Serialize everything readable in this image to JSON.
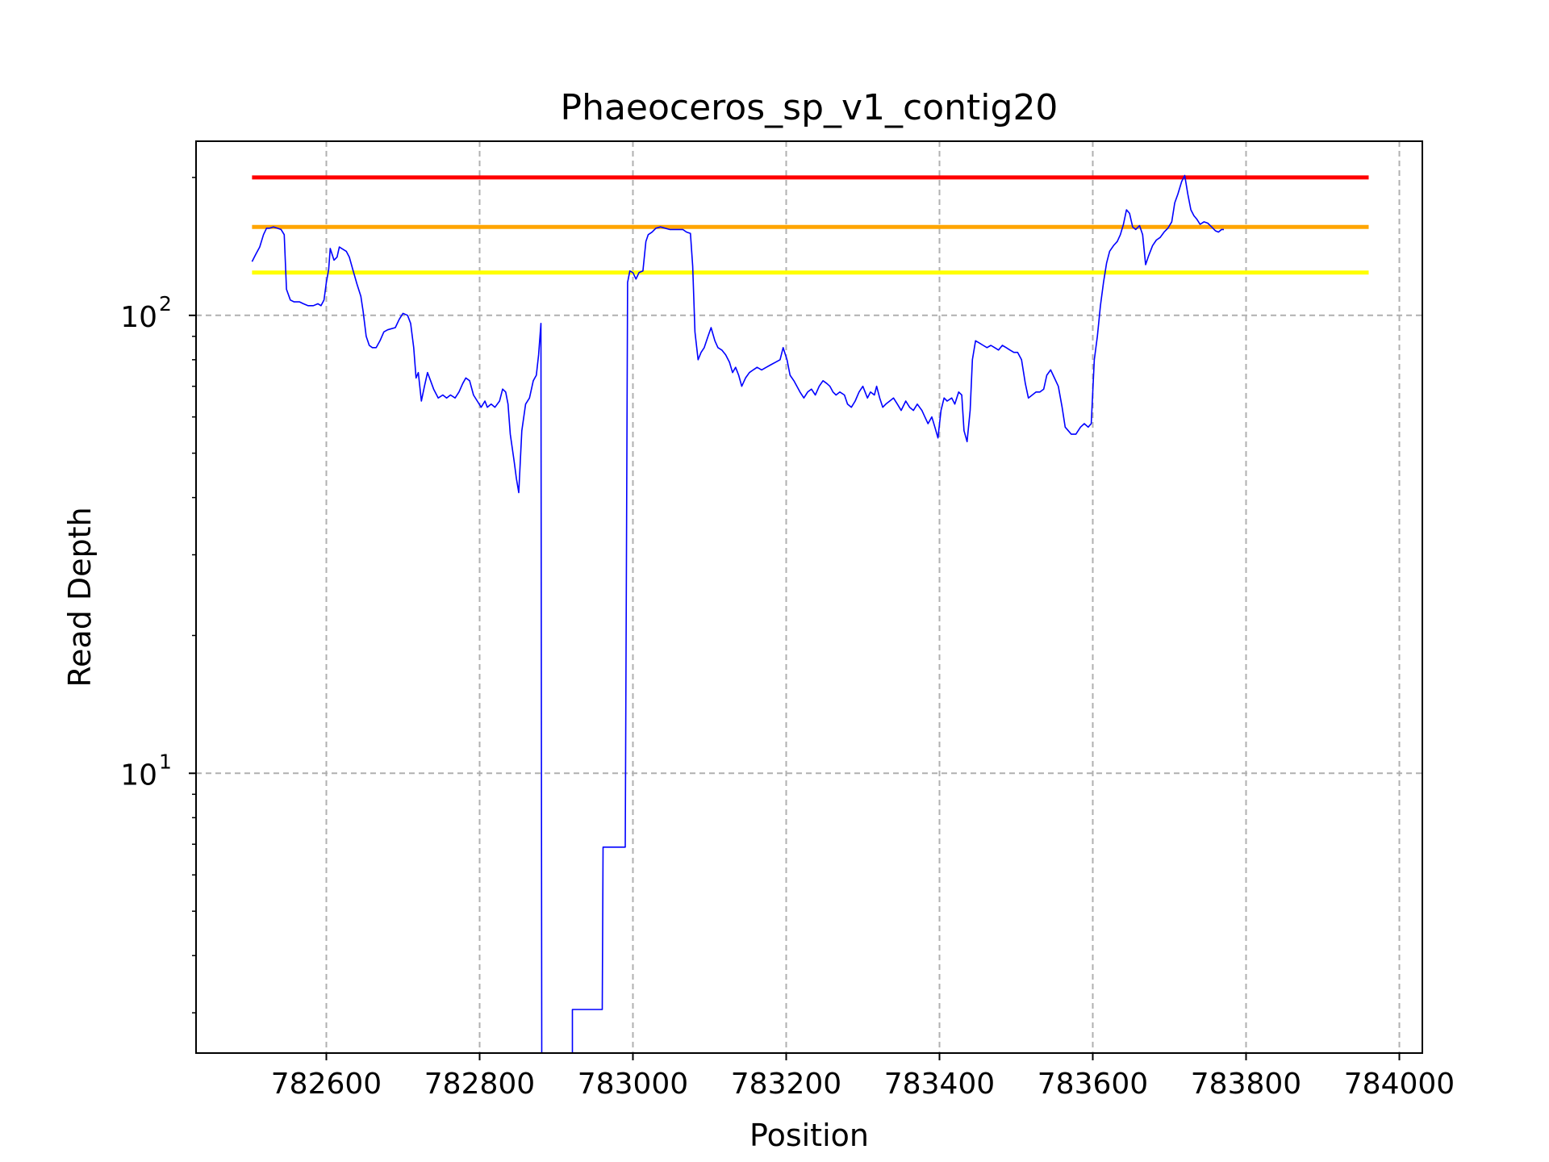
{
  "chart_data": {
    "type": "line",
    "title": "Phaeoceros_sp_v1_contig20",
    "xlabel": "Position",
    "ylabel": "Read Depth",
    "yscale": "log",
    "xlim": [
      782430,
      784030
    ],
    "ylim": [
      2.45,
      240
    ],
    "grid": true,
    "x_ticks": [
      782600,
      782800,
      783000,
      783200,
      783400,
      783600,
      783800,
      784000
    ],
    "x_tick_labels": [
      "782600",
      "782800",
      "783000",
      "783200",
      "783400",
      "783600",
      "783800",
      "784000"
    ],
    "y_ticks": [
      {
        "value": 10,
        "base": "10",
        "exp": "1"
      },
      {
        "value": 100,
        "base": "10",
        "exp": "2"
      }
    ],
    "reference_lines": [
      {
        "name": "red",
        "value": 200,
        "x_range": [
          782503,
          783960
        ],
        "color": "#ff0000"
      },
      {
        "name": "orange",
        "value": 156,
        "x_range": [
          782503,
          783960
        ],
        "color": "#ffa500"
      },
      {
        "name": "yellow",
        "value": 124,
        "x_range": [
          782503,
          783960
        ],
        "color": "#ffff00"
      }
    ],
    "series": [
      {
        "name": "read depth",
        "color": "#0000ff",
        "points": [
          [
            782503,
            131
          ],
          [
            782508,
            136
          ],
          [
            782513,
            141
          ],
          [
            782518,
            150
          ],
          [
            782522,
            155
          ],
          [
            782526,
            155
          ],
          [
            782531,
            156
          ],
          [
            782536,
            155
          ],
          [
            782541,
            154
          ],
          [
            782545,
            150
          ],
          [
            782548,
            114
          ],
          [
            782553,
            108
          ],
          [
            782558,
            107
          ],
          [
            782565,
            107
          ],
          [
            782570,
            106
          ],
          [
            782576,
            105
          ],
          [
            782583,
            105
          ],
          [
            782589,
            106
          ],
          [
            782593,
            105
          ],
          [
            782597,
            108
          ],
          [
            782600,
            118
          ],
          [
            782603,
            126
          ],
          [
            782605,
            140
          ],
          [
            782610,
            132
          ],
          [
            782614,
            134
          ],
          [
            782617,
            141
          ],
          [
            782620,
            140
          ],
          [
            782626,
            138
          ],
          [
            782630,
            134
          ],
          [
            782635,
            125
          ],
          [
            782640,
            117
          ],
          [
            782645,
            110
          ],
          [
            782648,
            102
          ],
          [
            782652,
            90
          ],
          [
            782656,
            86
          ],
          [
            782660,
            85
          ],
          [
            782665,
            85
          ],
          [
            782670,
            88
          ],
          [
            782675,
            92
          ],
          [
            782680,
            93
          ],
          [
            782690,
            94
          ],
          [
            782695,
            98
          ],
          [
            782700,
            101
          ],
          [
            782706,
            100
          ],
          [
            782710,
            96
          ],
          [
            782714,
            85
          ],
          [
            782717,
            73
          ],
          [
            782720,
            75
          ],
          [
            782724,
            65
          ],
          [
            782728,
            70
          ],
          [
            782732,
            75
          ],
          [
            782736,
            72
          ],
          [
            782740,
            69
          ],
          [
            782746,
            66
          ],
          [
            782752,
            67
          ],
          [
            782757,
            66
          ],
          [
            782762,
            67
          ],
          [
            782768,
            66
          ],
          [
            782773,
            68
          ],
          [
            782778,
            71
          ],
          [
            782782,
            73
          ],
          [
            782787,
            72
          ],
          [
            782792,
            67
          ],
          [
            782797,
            65
          ],
          [
            782802,
            63
          ],
          [
            782807,
            65
          ],
          [
            782810,
            63
          ],
          [
            782815,
            64
          ],
          [
            782820,
            63
          ],
          [
            782826,
            65
          ],
          [
            782830,
            69
          ],
          [
            782834,
            68
          ],
          [
            782837,
            64
          ],
          [
            782840,
            55
          ],
          [
            782845,
            48
          ],
          [
            782848,
            44
          ],
          [
            782851,
            41
          ],
          [
            782855,
            56
          ],
          [
            782860,
            64
          ],
          [
            782865,
            66
          ],
          [
            782870,
            72
          ],
          [
            782874,
            74
          ],
          [
            782877,
            82
          ],
          [
            782880,
            96
          ],
          [
            782881,
            2.45
          ],
          [
            782921,
            2.45
          ],
          [
            782921,
            3.05
          ],
          [
            782960,
            3.05
          ],
          [
            782961,
            6.9
          ],
          [
            782990,
            6.9
          ],
          [
            782993,
            118
          ],
          [
            782996,
            125
          ],
          [
            783000,
            124
          ],
          [
            783004,
            120
          ],
          [
            783008,
            124
          ],
          [
            783013,
            125
          ],
          [
            783017,
            145
          ],
          [
            783020,
            150
          ],
          [
            783025,
            152
          ],
          [
            783030,
            155
          ],
          [
            783036,
            156
          ],
          [
            783042,
            155
          ],
          [
            783048,
            154
          ],
          [
            783054,
            154
          ],
          [
            783060,
            154
          ],
          [
            783065,
            154
          ],
          [
            783070,
            152
          ],
          [
            783075,
            151
          ],
          [
            783078,
            128
          ],
          [
            783081,
            92
          ],
          [
            783085,
            80
          ],
          [
            783089,
            83
          ],
          [
            783093,
            85
          ],
          [
            783098,
            90
          ],
          [
            783102,
            94
          ],
          [
            783107,
            88
          ],
          [
            783111,
            85
          ],
          [
            783116,
            84
          ],
          [
            783121,
            82
          ],
          [
            783126,
            79
          ],
          [
            783130,
            75
          ],
          [
            783134,
            77
          ],
          [
            783138,
            74
          ],
          [
            783142,
            70
          ],
          [
            783147,
            73
          ],
          [
            783152,
            75
          ],
          [
            783157,
            76
          ],
          [
            783162,
            77
          ],
          [
            783168,
            76
          ],
          [
            783174,
            77
          ],
          [
            783180,
            78
          ],
          [
            783186,
            79
          ],
          [
            783192,
            80
          ],
          [
            783196,
            85
          ],
          [
            783201,
            80
          ],
          [
            783205,
            74
          ],
          [
            783210,
            72
          ],
          [
            783214,
            70
          ],
          [
            783218,
            68
          ],
          [
            783223,
            66
          ],
          [
            783228,
            68
          ],
          [
            783233,
            69
          ],
          [
            783238,
            67
          ],
          [
            783243,
            70
          ],
          [
            783248,
            72
          ],
          [
            783253,
            71
          ],
          [
            783257,
            70
          ],
          [
            783261,
            68
          ],
          [
            783265,
            67
          ],
          [
            783270,
            68
          ],
          [
            783276,
            67
          ],
          [
            783280,
            64
          ],
          [
            783285,
            63
          ],
          [
            783290,
            65
          ],
          [
            783295,
            68
          ],
          [
            783300,
            70
          ],
          [
            783306,
            66
          ],
          [
            783310,
            68
          ],
          [
            783315,
            67
          ],
          [
            783318,
            70
          ],
          [
            783322,
            66
          ],
          [
            783326,
            63
          ],
          [
            783330,
            64
          ],
          [
            783335,
            65
          ],
          [
            783340,
            66
          ],
          [
            783345,
            64
          ],
          [
            783350,
            62
          ],
          [
            783356,
            65
          ],
          [
            783361,
            63
          ],
          [
            783366,
            62
          ],
          [
            783371,
            64
          ],
          [
            783377,
            62
          ],
          [
            783381,
            60
          ],
          [
            783385,
            58
          ],
          [
            783390,
            60
          ],
          [
            783394,
            57
          ],
          [
            783398,
            54
          ],
          [
            783402,
            62
          ],
          [
            783406,
            66
          ],
          [
            783410,
            65
          ],
          [
            783416,
            66
          ],
          [
            783420,
            64
          ],
          [
            783425,
            68
          ],
          [
            783429,
            67
          ],
          [
            783432,
            56
          ],
          [
            783436,
            53
          ],
          [
            783440,
            62
          ],
          [
            783443,
            80
          ],
          [
            783447,
            88
          ],
          [
            783452,
            87
          ],
          [
            783457,
            86
          ],
          [
            783462,
            85
          ],
          [
            783467,
            86
          ],
          [
            783472,
            85
          ],
          [
            783477,
            84
          ],
          [
            783482,
            86
          ],
          [
            783487,
            85
          ],
          [
            783492,
            84
          ],
          [
            783497,
            83
          ],
          [
            783502,
            83
          ],
          [
            783507,
            80
          ],
          [
            783512,
            71
          ],
          [
            783516,
            66
          ],
          [
            783521,
            67
          ],
          [
            783526,
            68
          ],
          [
            783531,
            68
          ],
          [
            783536,
            69
          ],
          [
            783540,
            74
          ],
          [
            783545,
            76
          ],
          [
            783550,
            73
          ],
          [
            783555,
            70
          ],
          [
            783560,
            63
          ],
          [
            783564,
            57
          ],
          [
            783568,
            56
          ],
          [
            783572,
            55
          ],
          [
            783578,
            55
          ],
          [
            783584,
            57
          ],
          [
            783589,
            58
          ],
          [
            783594,
            57
          ],
          [
            783598,
            58
          ],
          [
            783602,
            80
          ],
          [
            783606,
            90
          ],
          [
            783610,
            105
          ],
          [
            783614,
            118
          ],
          [
            783618,
            130
          ],
          [
            783622,
            138
          ],
          [
            783627,
            142
          ],
          [
            783632,
            145
          ],
          [
            783636,
            150
          ],
          [
            783640,
            158
          ],
          [
            783644,
            170
          ],
          [
            783648,
            167
          ],
          [
            783652,
            156
          ],
          [
            783656,
            154
          ],
          [
            783661,
            157
          ],
          [
            783665,
            150
          ],
          [
            783669,
            129
          ],
          [
            783673,
            135
          ],
          [
            783678,
            142
          ],
          [
            783683,
            146
          ],
          [
            783688,
            148
          ],
          [
            783693,
            152
          ],
          [
            783698,
            155
          ],
          [
            783703,
            160
          ],
          [
            783707,
            176
          ],
          [
            783711,
            184
          ],
          [
            783716,
            196
          ],
          [
            783720,
            202
          ],
          [
            783724,
            184
          ],
          [
            783728,
            170
          ],
          [
            783732,
            165
          ],
          [
            783736,
            162
          ],
          [
            783740,
            158
          ],
          [
            783745,
            160
          ],
          [
            783750,
            159
          ],
          [
            783755,
            156
          ],
          [
            783760,
            153
          ],
          [
            783764,
            152
          ],
          [
            783768,
            154
          ],
          [
            783771,
            154
          ]
        ]
      }
    ]
  }
}
